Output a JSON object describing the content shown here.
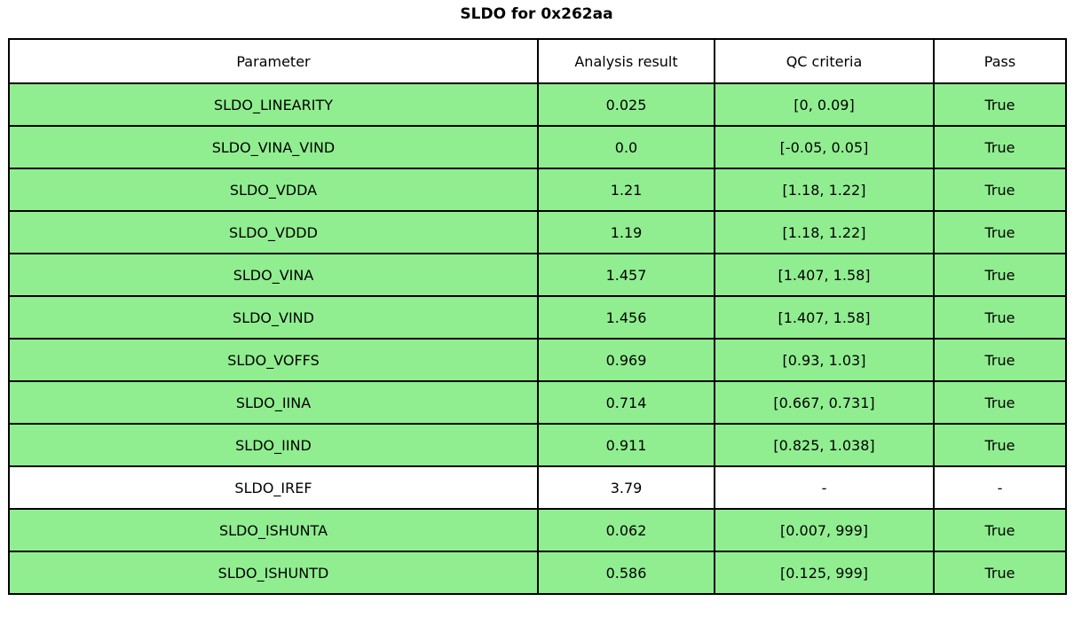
{
  "title": "SLDO for 0x262aa",
  "colors": {
    "pass_row": "#90EE90",
    "neutral_row": "#FFFFFF",
    "border": "#000000",
    "text": "#000000"
  },
  "table": {
    "columns": [
      "Parameter",
      "Analysis result",
      "QC criteria",
      "Pass"
    ],
    "rows": [
      {
        "cells": [
          "SLDO_LINEARITY",
          "0.025",
          "[0, 0.09]",
          "True"
        ],
        "highlight": true
      },
      {
        "cells": [
          "SLDO_VINA_VIND",
          "0.0",
          "[-0.05, 0.05]",
          "True"
        ],
        "highlight": true
      },
      {
        "cells": [
          "SLDO_VDDA",
          "1.21",
          "[1.18, 1.22]",
          "True"
        ],
        "highlight": true
      },
      {
        "cells": [
          "SLDO_VDDD",
          "1.19",
          "[1.18, 1.22]",
          "True"
        ],
        "highlight": true
      },
      {
        "cells": [
          "SLDO_VINA",
          "1.457",
          "[1.407, 1.58]",
          "True"
        ],
        "highlight": true
      },
      {
        "cells": [
          "SLDO_VIND",
          "1.456",
          "[1.407, 1.58]",
          "True"
        ],
        "highlight": true
      },
      {
        "cells": [
          "SLDO_VOFFS",
          "0.969",
          "[0.93, 1.03]",
          "True"
        ],
        "highlight": true
      },
      {
        "cells": [
          "SLDO_IINA",
          "0.714",
          "[0.667, 0.731]",
          "True"
        ],
        "highlight": true
      },
      {
        "cells": [
          "SLDO_IIND",
          "0.911",
          "[0.825, 1.038]",
          "True"
        ],
        "highlight": true
      },
      {
        "cells": [
          "SLDO_IREF",
          "3.79",
          "-",
          "-"
        ],
        "highlight": false
      },
      {
        "cells": [
          "SLDO_ISHUNTA",
          "0.062",
          "[0.007, 999]",
          "True"
        ],
        "highlight": true
      },
      {
        "cells": [
          "SLDO_ISHUNTD",
          "0.586",
          "[0.125, 999]",
          "True"
        ],
        "highlight": true
      }
    ]
  },
  "chart_data": {
    "type": "table",
    "title": "SLDO for 0x262aa",
    "columns": [
      "Parameter",
      "Analysis result",
      "QC criteria",
      "Pass"
    ],
    "rows": [
      [
        "SLDO_LINEARITY",
        "0.025",
        "[0, 0.09]",
        "True"
      ],
      [
        "SLDO_VINA_VIND",
        "0.0",
        "[-0.05, 0.05]",
        "True"
      ],
      [
        "SLDO_VDDA",
        "1.21",
        "[1.18, 1.22]",
        "True"
      ],
      [
        "SLDO_VDDD",
        "1.19",
        "[1.18, 1.22]",
        "True"
      ],
      [
        "SLDO_VINA",
        "1.457",
        "[1.407, 1.58]",
        "True"
      ],
      [
        "SLDO_VIND",
        "1.456",
        "[1.407, 1.58]",
        "True"
      ],
      [
        "SLDO_VOFFS",
        "0.969",
        "[0.93, 1.03]",
        "True"
      ],
      [
        "SLDO_IINA",
        "0.714",
        "[0.667, 0.731]",
        "True"
      ],
      [
        "SLDO_IIND",
        "0.911",
        "[0.825, 1.038]",
        "True"
      ],
      [
        "SLDO_IREF",
        "3.79",
        "-",
        "-"
      ],
      [
        "SLDO_ISHUNTA",
        "0.062",
        "[0.007, 999]",
        "True"
      ],
      [
        "SLDO_ISHUNTD",
        "0.586",
        "[0.125, 999]",
        "True"
      ]
    ],
    "row_highlighted_green": [
      true,
      true,
      true,
      true,
      true,
      true,
      true,
      true,
      true,
      false,
      true,
      true
    ],
    "legend_position": "none",
    "grid": "full-borders"
  }
}
